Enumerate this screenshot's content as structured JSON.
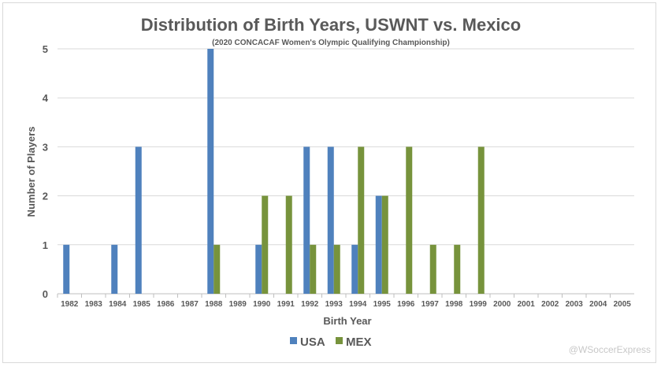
{
  "chart_data": {
    "type": "bar",
    "title": "Distribution of Birth Years, USWNT vs. Mexico",
    "subtitle": "(2020 CONCACAF Women's Olympic Qualifying Championship)",
    "xlabel": "Birth Year",
    "ylabel": "Number of Players",
    "ylim": [
      0,
      5
    ],
    "yticks": [
      "0",
      "1",
      "2",
      "3",
      "4",
      "5"
    ],
    "grid": true,
    "legend_position": "bottom",
    "categories": [
      "1982",
      "1983",
      "1984",
      "1985",
      "1986",
      "1987",
      "1988",
      "1989",
      "1990",
      "1991",
      "1992",
      "1993",
      "1994",
      "1995",
      "1996",
      "1997",
      "1998",
      "1999",
      "2000",
      "2001",
      "2002",
      "2003",
      "2004",
      "2005"
    ],
    "series": [
      {
        "name": "USA",
        "color": "#4f81bd",
        "values": [
          1,
          0,
          1,
          3,
          0,
          0,
          5,
          0,
          1,
          0,
          3,
          3,
          1,
          2,
          0,
          0,
          0,
          0,
          0,
          0,
          0,
          0,
          0,
          0
        ]
      },
      {
        "name": "MEX",
        "color": "#77933c",
        "values": [
          0,
          0,
          0,
          0,
          0,
          0,
          1,
          0,
          2,
          2,
          1,
          1,
          3,
          2,
          3,
          1,
          1,
          3,
          0,
          0,
          0,
          0,
          0,
          0
        ]
      }
    ],
    "watermark": "@WSoccerExpress"
  }
}
